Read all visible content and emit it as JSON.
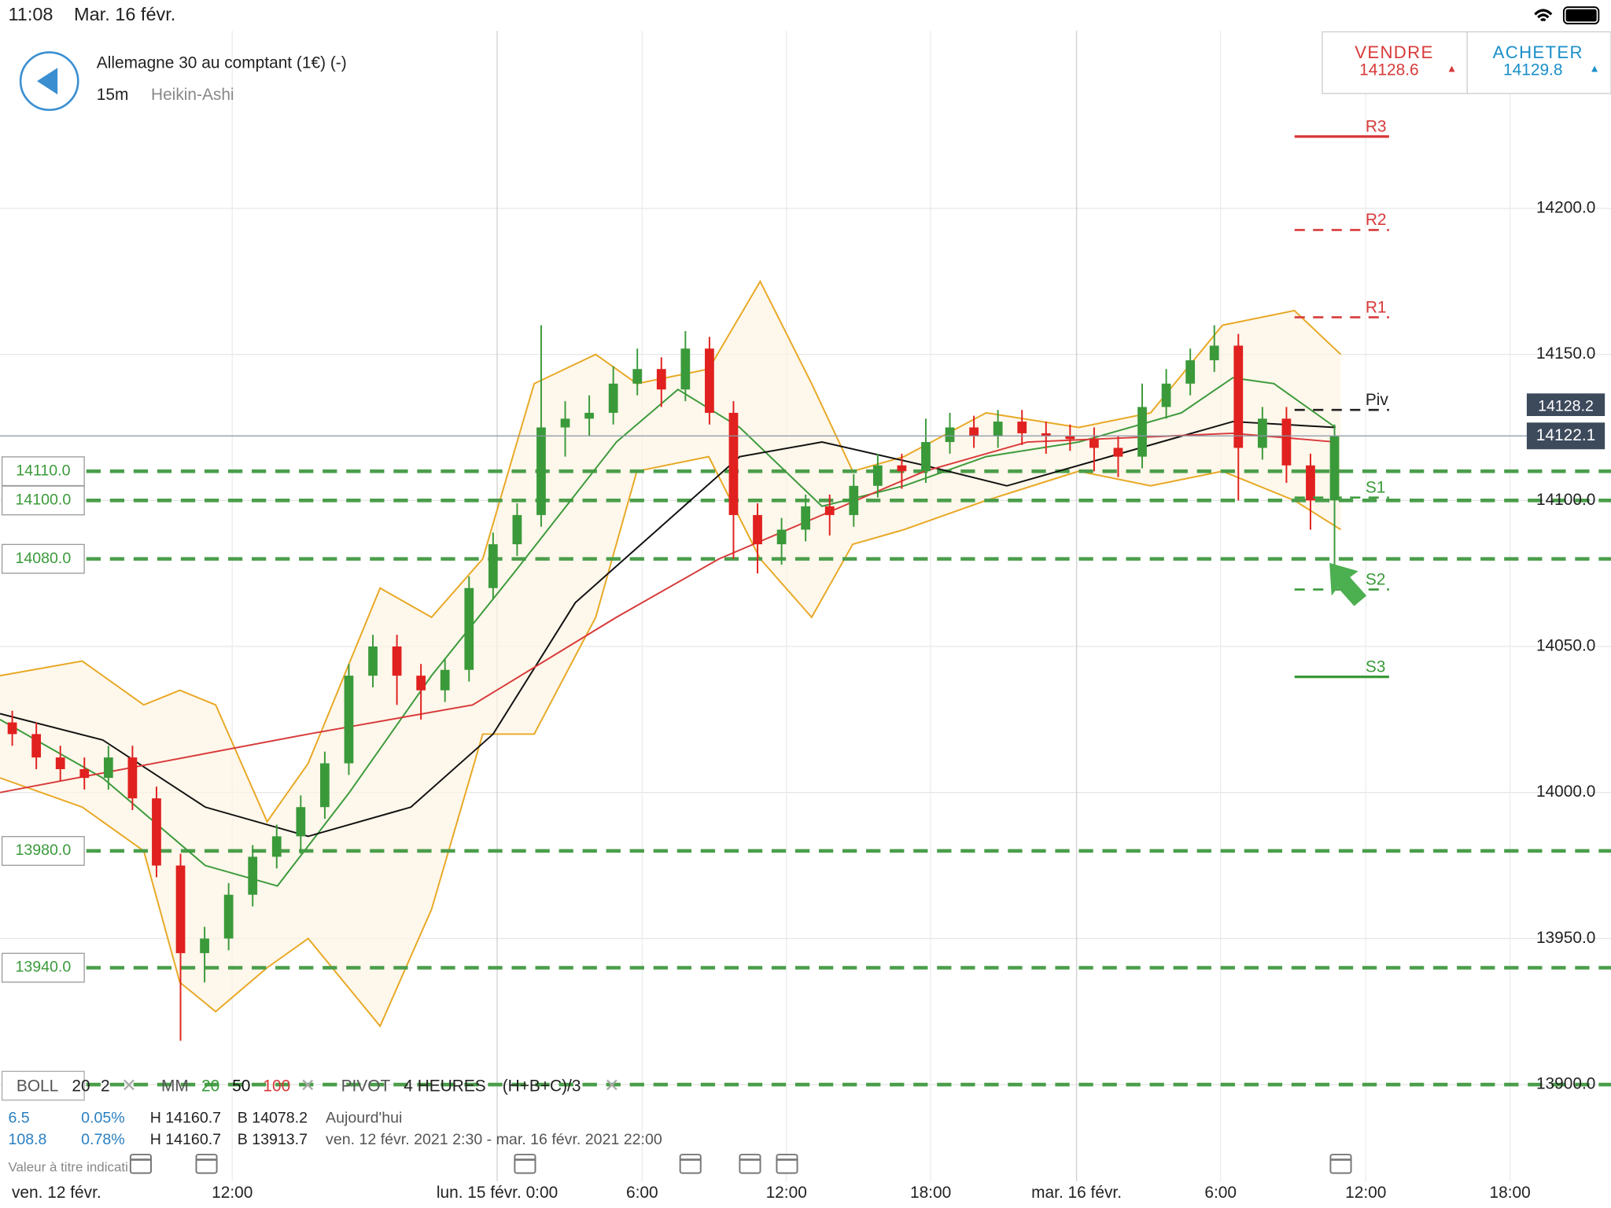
{
  "status": {
    "time": "11:08",
    "date": "Mar. 16 févr."
  },
  "instrument": {
    "title": "Allemagne 30 au comptant (1€) (-)",
    "interval": "15m",
    "chart_style": "Heikin-Ashi"
  },
  "quote": {
    "sell_label": "VENDRE",
    "sell_price": 14128.6,
    "buy_label": "ACHETER",
    "buy_price": 14129.8
  },
  "indicators": {
    "boll": "BOLL",
    "boll_period": "20",
    "boll_dev": "2",
    "ma": "MM",
    "pivot": "PIVOT",
    "pivot_period": "4 HEURES",
    "pivot_formula": "(H+B+C)/3"
  },
  "stats": [
    {
      "change": "6.5",
      "pct": "0.05%",
      "high": "H 14160.7",
      "low": "B 14078.2",
      "period": "Aujourd'hui"
    },
    {
      "change": "108.8",
      "pct": "0.78%",
      "high": "H 14160.7",
      "low": "B 13913.7",
      "period": "ven. 12 févr. 2021 2:30 - mar. 16 févr. 2021 22:00"
    }
  ],
  "disclaimer": "Valeur à titre indicati",
  "chart_data": {
    "type": "candlestick",
    "up_color": "#3a9a3a",
    "down_color": "#e0211f",
    "open": [
      14024,
      14020,
      14012,
      14008,
      14005,
      14012,
      13998,
      13975,
      13945,
      13950,
      13965,
      13978,
      13985,
      13995,
      14010,
      14040,
      14050,
      14040,
      14035,
      14042,
      14070,
      14085,
      14095,
      14125,
      14128,
      14130,
      14140,
      14145,
      14138,
      14152,
      14130,
      14095,
      14085,
      14090,
      14098,
      14095,
      14105,
      14112,
      14110,
      14120,
      14125,
      14122,
      14127,
      14123,
      14122,
      14121,
      14118,
      14115,
      14132,
      14140,
      14148,
      14153,
      14118,
      14128,
      14112,
      14100
    ],
    "high": [
      14028,
      14024,
      14016,
      14012,
      14016,
      14016,
      14002,
      13979,
      13954,
      13969,
      13982,
      13989,
      13999,
      14014,
      14044,
      14054,
      14054,
      14044,
      14046,
      14074,
      14089,
      14099,
      14160,
      14134,
      14136,
      14146,
      14152,
      14149,
      14158,
      14156,
      14134,
      14099,
      14094,
      14102,
      14102,
      14109,
      14116,
      14116,
      14128,
      14130,
      14129,
      14131,
      14131,
      14127,
      14126,
      14125,
      14122,
      14140,
      14145,
      14152,
      14160,
      14157,
      14132,
      14132,
      14116,
      14126
    ],
    "low": [
      14016,
      14008,
      14004,
      14001,
      14001,
      13994,
      13971,
      13915,
      13935,
      13946,
      13961,
      13974,
      13979,
      13991,
      14006,
      14036,
      14030,
      14025,
      14031,
      14038,
      14066,
      14081,
      14091,
      14115,
      14122,
      14126,
      14136,
      14132,
      14134,
      14126,
      14080,
      14075,
      14078,
      14086,
      14088,
      14091,
      14101,
      14104,
      14106,
      14116,
      14118,
      14118,
      14119,
      14116,
      14117,
      14110,
      14108,
      14111,
      14128,
      14136,
      14144,
      14100,
      14114,
      14106,
      14090,
      14078
    ],
    "close": [
      14020,
      14012,
      14008,
      14005,
      14012,
      13998,
      13975,
      13945,
      13950,
      13965,
      13978,
      13985,
      13995,
      14010,
      14040,
      14050,
      14040,
      14035,
      14042,
      14070,
      14085,
      14095,
      14125,
      14128,
      14130,
      14140,
      14145,
      14138,
      14152,
      14130,
      14095,
      14085,
      14090,
      14098,
      14095,
      14105,
      14112,
      14110,
      14120,
      14125,
      14122,
      14127,
      14123,
      14122,
      14121,
      14118,
      14115,
      14132,
      14140,
      14148,
      14153,
      14118,
      14128,
      14112,
      14100,
      14122
    ],
    "lines": [
      {
        "name": "20",
        "color": "#3a9a3a",
        "x": [
          -0.51,
          3.76,
          8.03,
          11.03,
          14.02,
          17.44,
          20.85,
          25.13,
          27.69,
          30.26,
          33.68,
          37.09,
          40.51,
          44.36,
          48.63,
          50.77,
          52.48,
          55.04
        ],
        "values": [
          14025,
          14005,
          13975,
          13968,
          14000,
          14040,
          14075,
          14120,
          14138,
          14125,
          14098,
          14105,
          14115,
          14120,
          14130,
          14142,
          14140,
          14125
        ]
      },
      {
        "name": "50",
        "color": "#111111",
        "x": [
          -0.51,
          3.76,
          8.03,
          12.31,
          16.58,
          20,
          23.42,
          26.84,
          30.26,
          33.68,
          37.95,
          41.37,
          45.64,
          50.77,
          55.04
        ],
        "values": [
          14027,
          14018,
          13995,
          13985,
          13995,
          14020,
          14065,
          14090,
          14115,
          14120,
          14112,
          14105,
          14115,
          14127,
          14125
        ]
      },
      {
        "name": "100",
        "color": "#d83a3a",
        "x": [
          -0.51,
          5.9,
          12.31,
          19.15,
          25.13,
          29.4,
          33.68,
          37.95,
          42.22,
          50.77,
          55.04
        ],
        "values": [
          14000,
          14010,
          14020,
          14030,
          14060,
          14080,
          14095,
          14110,
          14120,
          14123,
          14120
        ]
      }
    ],
    "bands": {
      "color": "#e8a824",
      "x": [
        -0.51,
        2.91,
        5.47,
        6.97,
        8.46,
        10.6,
        12.31,
        15.3,
        17.44,
        19.57,
        21.71,
        24.27,
        25.98,
        28.97,
        31.11,
        33.25,
        34.96,
        37.09,
        40.51,
        44.36,
        47.35,
        50.34,
        53.33,
        55.26
      ],
      "upper": [
        14040,
        14045,
        14030,
        14035,
        14030,
        13990,
        14010,
        14070,
        14060,
        14080,
        14140,
        14150,
        14140,
        14145,
        14175,
        14140,
        14110,
        14115,
        14130,
        14125,
        14130,
        14160,
        14165,
        14150
      ],
      "lower": [
        14005,
        13995,
        13980,
        13935,
        13925,
        13940,
        13950,
        13920,
        13960,
        14020,
        14020,
        14060,
        14110,
        14115,
        14080,
        14060,
        14085,
        14090,
        14100,
        14110,
        14105,
        14110,
        14100,
        14090
      ]
    },
    "levels": [
      {
        "value": 14110,
        "label": "14110.0"
      },
      {
        "value": 14100,
        "label": "14100.0"
      },
      {
        "value": 14080,
        "label": "14080.0"
      },
      {
        "value": 13980,
        "label": "13980.0"
      },
      {
        "value": 13940,
        "label": "13940.0"
      },
      {
        "value": 13900,
        "label": "13900.0"
      }
    ],
    "pivots": [
      {
        "label": "R3",
        "value": 14224.6,
        "color": "#d83a3a",
        "dashed": false
      },
      {
        "label": "R2",
        "value": 14192.6,
        "color": "#d83a3a",
        "dashed": true
      },
      {
        "label": "R1",
        "value": 14162.7,
        "color": "#d83a3a",
        "dashed": true
      },
      {
        "label": "Piv",
        "value": 14131,
        "color": "#222222",
        "dashed": true
      },
      {
        "label": "S1",
        "value": 14101,
        "color": "#3a9a3a",
        "dashed": true
      },
      {
        "label": "S2",
        "value": 14069.5,
        "color": "#3a9a3a",
        "dashed": true
      },
      {
        "label": "S3",
        "value": 14039.6,
        "color": "#3a9a3a",
        "dashed": false
      }
    ],
    "last_price": 14122.1,
    "prev_price": 14128.2,
    "xlim": [
      -0.51,
      66.5
    ],
    "ylim": [
      13870.4,
      14260.8
    ],
    "xticks": [
      {
        "value": 1.84,
        "label": "ven. 12 févr."
      },
      {
        "value": 9.15,
        "label": "12:00"
      },
      {
        "value": 20.17,
        "label": "lun. 15 févr. 0:00"
      },
      {
        "value": 26.2,
        "label": "6:00"
      },
      {
        "value": 32.2,
        "label": "12:00"
      },
      {
        "value": 38.2,
        "label": "18:00"
      },
      {
        "value": 44.27,
        "label": "mar. 16 févr."
      },
      {
        "value": 50.26,
        "label": "6:00"
      },
      {
        "value": 56.3,
        "label": "12:00"
      },
      {
        "value": 62.3,
        "label": "18:00"
      }
    ],
    "yticks": [
      {
        "value": 13900,
        "label": "13900.0"
      },
      {
        "value": 13950,
        "label": "13950.0"
      },
      {
        "value": 14000,
        "label": "14000.0"
      },
      {
        "value": 14050,
        "label": "14050.0"
      },
      {
        "value": 14100,
        "label": "14100.0"
      },
      {
        "value": 14150,
        "label": "14150.0"
      },
      {
        "value": 14200,
        "label": "14200.0"
      }
    ],
    "grid": true
  }
}
